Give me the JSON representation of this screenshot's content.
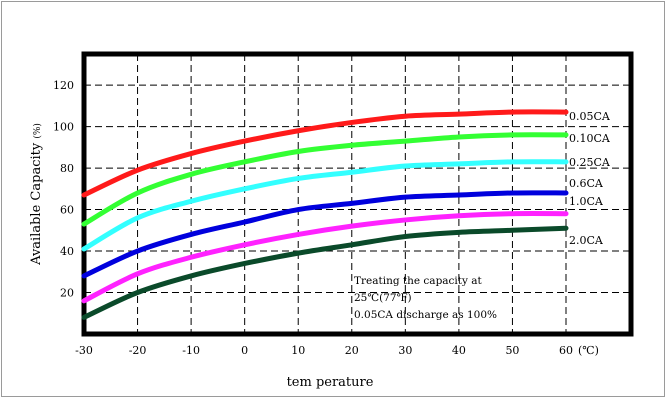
{
  "chart_data": {
    "type": "line",
    "title": "",
    "xlabel": "tem perature",
    "ylabel": "Available Capacity",
    "ylabel_unit": "(%)",
    "x_unit_suffix": "(℃)",
    "xlim": [
      -30,
      60
    ],
    "ylim": [
      0,
      135
    ],
    "x_ticks": [
      -30,
      -20,
      -10,
      0,
      10,
      20,
      30,
      40,
      50,
      60
    ],
    "x_tick_labels": [
      "-30",
      "-20",
      "-10",
      "0",
      "10",
      "20",
      "30",
      "40",
      "50",
      "60"
    ],
    "y_ticks": [
      20,
      40,
      60,
      80,
      100,
      120
    ],
    "grid": true,
    "grid_style": "dashed",
    "x": [
      -30,
      -20,
      -10,
      0,
      10,
      20,
      30,
      40,
      50,
      60
    ],
    "series": [
      {
        "name": "0.05CA",
        "color": "#ff1a1a",
        "values": [
          67,
          79,
          87,
          93,
          98,
          102,
          105,
          106,
          107,
          107
        ]
      },
      {
        "name": "0.10CA",
        "color": "#33ff33",
        "values": [
          53,
          68,
          77,
          83,
          88,
          91,
          93,
          95,
          96,
          96
        ]
      },
      {
        "name": "0.25CA",
        "color": "#33ffff",
        "values": [
          41,
          56,
          64,
          70,
          75,
          78,
          81,
          82,
          83,
          83
        ]
      },
      {
        "name": "0.6CA",
        "color": "#0000dd",
        "values": [
          28,
          40,
          48,
          54,
          60,
          63,
          66,
          67,
          68,
          68
        ]
      },
      {
        "name": "1.0CA",
        "color": "#ff22ff",
        "values": [
          16,
          29,
          37,
          43,
          48,
          52,
          55,
          57,
          58,
          58
        ]
      },
      {
        "name": "2.0CA",
        "color": "#0a4a2a",
        "values": [
          8,
          20,
          28,
          34,
          39,
          43,
          47,
          49,
          50,
          51
        ]
      }
    ],
    "annotation": {
      "line1": "Treating the capacity at",
      "line2": "25℃(77℉)",
      "line3": "0.05CA discharge as 100%"
    }
  }
}
